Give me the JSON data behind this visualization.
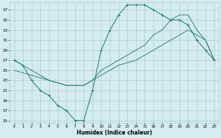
{
  "xlabel": "Humidex (Indice chaleur)",
  "bg_color": "#d4ecee",
  "grid_color": "#aacccc",
  "line_color": "#2a7d7d",
  "xlim": [
    -0.5,
    23.5
  ],
  "ylim": [
    14.5,
    38.5
  ],
  "yticks": [
    15,
    17,
    19,
    21,
    23,
    25,
    27,
    29,
    31,
    33,
    35,
    37
  ],
  "xticks": [
    0,
    1,
    2,
    3,
    4,
    5,
    6,
    7,
    8,
    9,
    10,
    11,
    12,
    13,
    14,
    15,
    16,
    17,
    18,
    19,
    20,
    21,
    22,
    23
  ],
  "line1_x": [
    0,
    1,
    2,
    3,
    4,
    5,
    6,
    7,
    8,
    9,
    10,
    11,
    12,
    13,
    14,
    15,
    16,
    17,
    18,
    19,
    20,
    21,
    22,
    23
  ],
  "line1_y": [
    27,
    26,
    23,
    21,
    20,
    18,
    17,
    15,
    15,
    21,
    29,
    33,
    36,
    38,
    38,
    38,
    37,
    36,
    35,
    35,
    34,
    31,
    29,
    27
  ],
  "line2_x": [
    0,
    2,
    4,
    6,
    8,
    9,
    10,
    11,
    12,
    13,
    14,
    15,
    16,
    17,
    18,
    19,
    20,
    21,
    22,
    23
  ],
  "line2_y": [
    27,
    25,
    23,
    22,
    22,
    23,
    25,
    26,
    27,
    28,
    29,
    30,
    32,
    33,
    35,
    36,
    36,
    33,
    31,
    27
  ],
  "line3_x": [
    0,
    2,
    4,
    6,
    8,
    10,
    12,
    14,
    16,
    18,
    20,
    22,
    23
  ],
  "line3_y": [
    25,
    24,
    23,
    22,
    22,
    24,
    26,
    27,
    29,
    31,
    33,
    31,
    27
  ]
}
